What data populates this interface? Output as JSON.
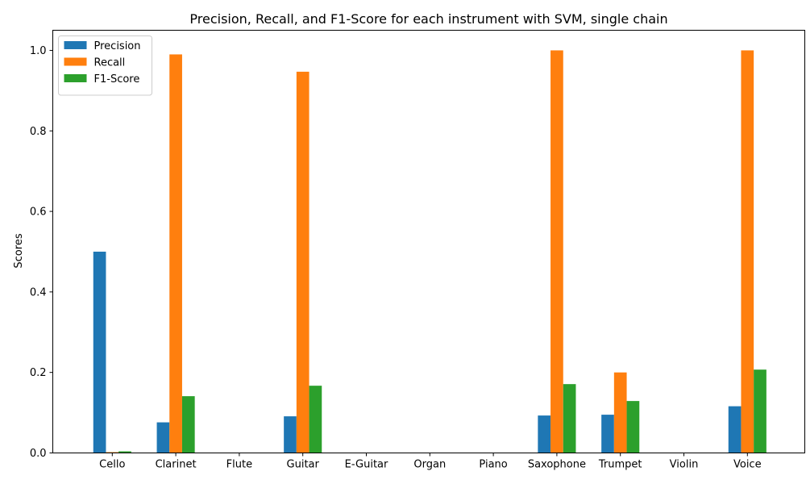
{
  "chart_data": {
    "type": "bar",
    "title": "Precision, Recall, and F1-Score for each instrument with SVM, single chain",
    "xlabel": "",
    "ylabel": "Scores",
    "ylim": [
      0,
      1.05
    ],
    "yticks": [
      "0.0",
      "0.2",
      "0.4",
      "0.6",
      "0.8",
      "1.0"
    ],
    "grid": false,
    "legend_position": "upper-left",
    "categories": [
      "Cello",
      "Clarinet",
      "Flute",
      "Guitar",
      "E-Guitar",
      "Organ",
      "Piano",
      "Saxophone",
      "Trumpet",
      "Violin",
      "Voice"
    ],
    "series": [
      {
        "name": "Precision",
        "color": "#1f77b4",
        "values": [
          0.5,
          0.076,
          0.0,
          0.091,
          0.0,
          0.0,
          0.0,
          0.093,
          0.095,
          0.0,
          0.116
        ]
      },
      {
        "name": "Recall",
        "color": "#ff7f0e",
        "values": [
          0.002,
          0.99,
          0.0,
          0.947,
          0.0,
          0.0,
          0.0,
          1.0,
          0.2,
          0.0,
          1.0
        ]
      },
      {
        "name": "F1-Score",
        "color": "#2ca02c",
        "values": [
          0.004,
          0.141,
          0.0,
          0.167,
          0.0,
          0.0,
          0.0,
          0.171,
          0.129,
          0.0,
          0.207
        ]
      }
    ]
  }
}
